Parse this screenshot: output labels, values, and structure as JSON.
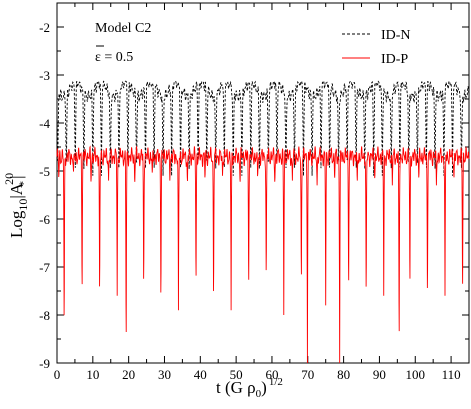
{
  "chart_data": {
    "type": "line",
    "xlabel_main": "t (G ρ",
    "xlabel_sub": "0",
    "xlabel_close": ")",
    "xlabel_sup": "1/2",
    "ylabel_main": "Log",
    "ylabel_sub": "10",
    "ylabel_open": "|A",
    "ylabel_sup": "20",
    "ylabel_sub2": "*",
    "ylabel_close": "|",
    "xlim": [
      0,
      115
    ],
    "ylim": [
      -9,
      -1.5
    ],
    "x_ticks": [
      0,
      10,
      20,
      30,
      40,
      50,
      60,
      70,
      80,
      90,
      100,
      110
    ],
    "y_ticks": [
      -9,
      -8,
      -7,
      -6,
      -5,
      -4,
      -3,
      -2
    ],
    "annotations": {
      "model": "Model C2",
      "epsilon_symbol": "ε",
      "epsilon_rest": " = 0.5"
    },
    "legend_position": "top-right",
    "series": [
      {
        "name": "ID-N",
        "color": "#000000",
        "style": "dashed",
        "baseline": -3.3,
        "peak_min": -3.6,
        "peak_max": -3.15,
        "dip_x": [
          0.2,
          2.6,
          5.1,
          7.5,
          10.0,
          12.4,
          14.9,
          17.3,
          19.8,
          22.2,
          24.7,
          27.1,
          29.6,
          32.0,
          34.5,
          36.9,
          39.4,
          41.8,
          44.3,
          46.7,
          49.2,
          51.6,
          54.1,
          56.5,
          59.0,
          61.4,
          63.9,
          66.3,
          68.8,
          71.2,
          73.7,
          76.1,
          78.6,
          81.0,
          83.5,
          85.9,
          88.4,
          90.8,
          93.3,
          95.7,
          98.2,
          100.6,
          103.1,
          105.5,
          108.0,
          110.4,
          112.9
        ],
        "dip_depth": -5.1
      },
      {
        "name": "ID-P",
        "color": "#ff0000",
        "style": "solid",
        "baseline": -4.7,
        "dips": [
          [
            0.5,
            -5.2
          ],
          [
            2.0,
            -8.6
          ],
          [
            4.6,
            -5.1
          ],
          [
            7.0,
            -7.8
          ],
          [
            9.5,
            -5.3
          ],
          [
            11.9,
            -7.9
          ],
          [
            14.4,
            -5.2
          ],
          [
            16.8,
            -7.6
          ],
          [
            19.3,
            -9.0
          ],
          [
            21.7,
            -5.3
          ],
          [
            24.2,
            -7.7
          ],
          [
            26.6,
            -5.1
          ],
          [
            29.0,
            -8.0
          ],
          [
            31.5,
            -5.2
          ],
          [
            33.9,
            -7.9
          ],
          [
            36.4,
            -5.3
          ],
          [
            38.8,
            -7.6
          ],
          [
            41.3,
            -5.2
          ],
          [
            43.7,
            -8.0
          ],
          [
            46.2,
            -5.1
          ],
          [
            48.6,
            -7.9
          ],
          [
            51.1,
            -5.3
          ],
          [
            53.5,
            -7.7
          ],
          [
            56.0,
            -5.2
          ],
          [
            58.4,
            -7.5
          ],
          [
            60.8,
            -5.3
          ],
          [
            63.3,
            -8.0
          ],
          [
            65.7,
            -5.2
          ],
          [
            68.2,
            -7.6
          ],
          [
            69.9,
            -9.0
          ],
          [
            72.6,
            -5.3
          ],
          [
            75.0,
            -7.8
          ],
          [
            77.5,
            -5.2
          ],
          [
            78.9,
            -9.0
          ],
          [
            81.4,
            -7.7
          ],
          [
            83.8,
            -5.3
          ],
          [
            86.3,
            -7.9
          ],
          [
            88.7,
            -5.2
          ],
          [
            91.2,
            -7.6
          ],
          [
            93.6,
            -5.3
          ],
          [
            95.5,
            -9.0
          ],
          [
            98.5,
            -7.7
          ],
          [
            101.0,
            -5.2
          ],
          [
            103.4,
            -7.9
          ],
          [
            105.9,
            -5.3
          ],
          [
            108.3,
            -7.6
          ],
          [
            110.8,
            -5.2
          ],
          [
            113.2,
            -7.8
          ]
        ]
      }
    ]
  }
}
